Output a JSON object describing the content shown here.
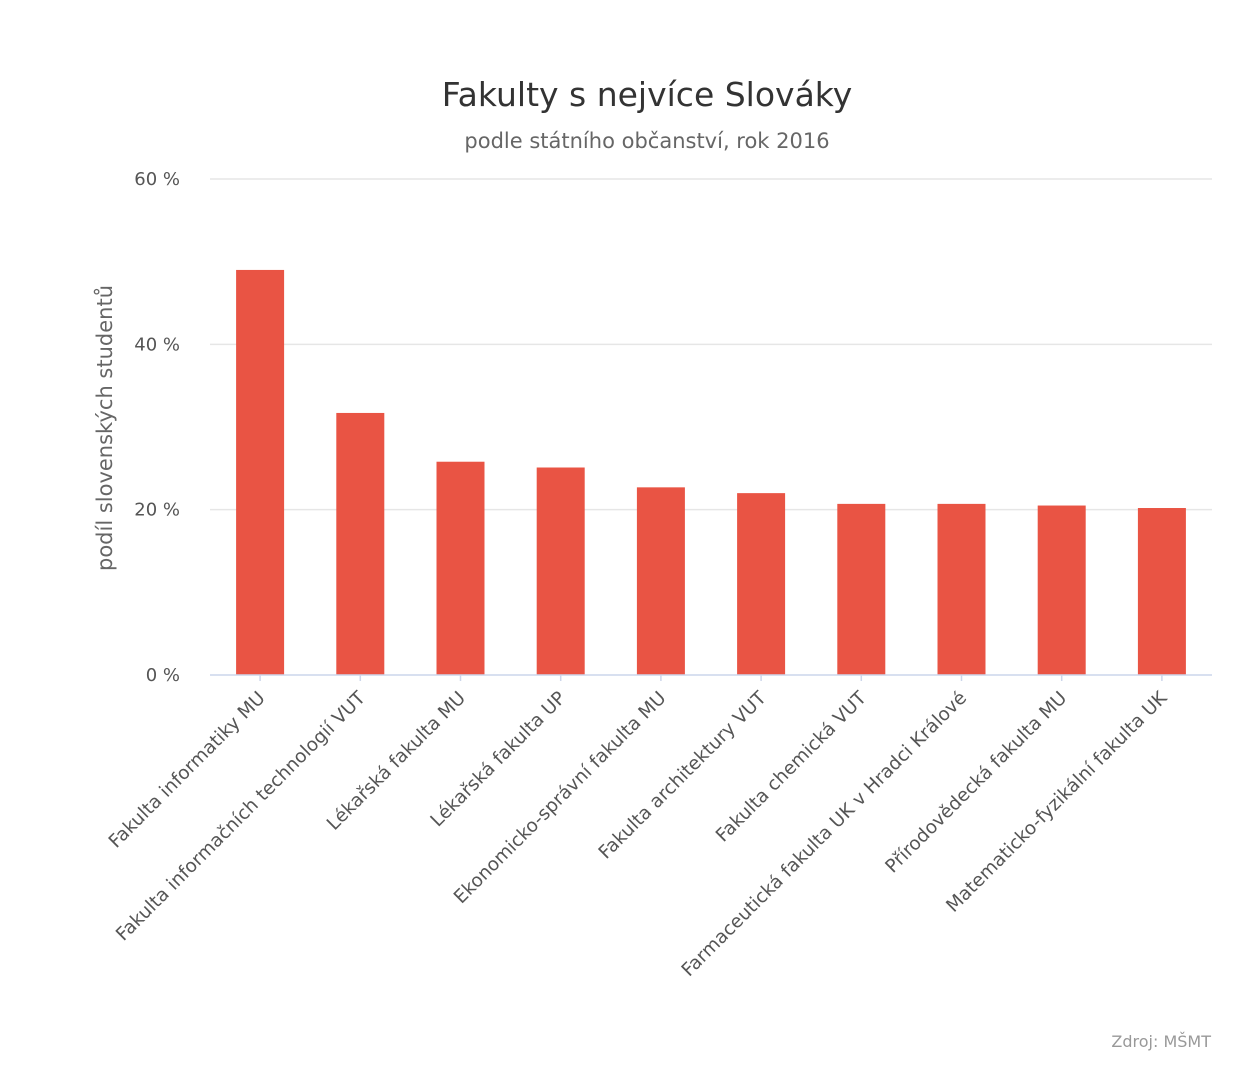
{
  "chart_data": {
    "type": "bar",
    "title": "Fakulty s nejvíce Slováky",
    "subtitle": "podle státního občanství, rok 2016",
    "ylabel": "podíl slovenských studentů",
    "xlabel": "",
    "ylim": [
      0,
      60
    ],
    "yticks": [
      0,
      20,
      40,
      60
    ],
    "ytick_labels": [
      "0 %",
      "20 %",
      "40 %",
      "60 %"
    ],
    "grid": true,
    "legend": "none",
    "categories": [
      "Fakulta informatiky MU",
      "Fakulta informačních technologií VUT",
      "Lékařská fakulta MU",
      "Lékařská fakulta UP",
      "Ekonomicko-správní fakulta MU",
      "Fakulta architektury VUT",
      "Fakulta chemická VUT",
      "Farmaceutická fakulta UK v Hradci Králové",
      "Přírodovědecká fakulta MU",
      "Matematicko-fyzikální fakulta UK"
    ],
    "values": [
      49,
      31.7,
      25.8,
      25.1,
      22.7,
      22,
      20.7,
      20.7,
      20.5,
      20.2
    ],
    "bar_color": "#e95444",
    "credit": "Zdroj: MŠMT"
  }
}
